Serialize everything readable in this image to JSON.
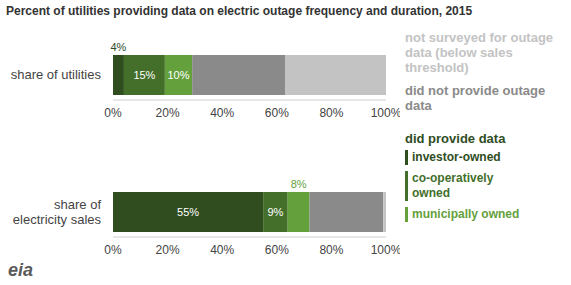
{
  "chart_data": {
    "type": "bar",
    "title": "Percent of utilities providing data on electric outage frequency and duration, 2015",
    "orientation": "horizontal",
    "stacked": true,
    "categories": [
      "share of utilities",
      "share of electricity sales"
    ],
    "series": [
      {
        "name": "investor-owned",
        "color": "#2f4d1f",
        "values": [
          4,
          55
        ],
        "value_labels": [
          "4%",
          "55%"
        ]
      },
      {
        "name": "co-operatively owned",
        "color": "#436f2b",
        "values": [
          15,
          9
        ],
        "value_labels": [
          "15%",
          "9%"
        ]
      },
      {
        "name": "municipally owned",
        "color": "#64a03c",
        "values": [
          10,
          8
        ],
        "value_labels": [
          "10%",
          "8%"
        ]
      },
      {
        "name": "did not provide outage data",
        "color": "#8a8a8a",
        "values": [
          34,
          27
        ]
      },
      {
        "name": "not surveyed for outage data (below sales threshold)",
        "color": "#c3c3c3",
        "values": [
          37,
          1
        ]
      }
    ],
    "xlim": [
      0,
      100
    ],
    "xticks": [
      {
        "value": 0,
        "label": "0%"
      },
      {
        "value": 20,
        "label": "20%"
      },
      {
        "value": 40,
        "label": "40%"
      },
      {
        "value": 60,
        "label": "60%"
      },
      {
        "value": 80,
        "label": "80%"
      },
      {
        "value": 100,
        "label": "100%"
      }
    ],
    "legend_title": "did provide data",
    "source": "eia"
  }
}
